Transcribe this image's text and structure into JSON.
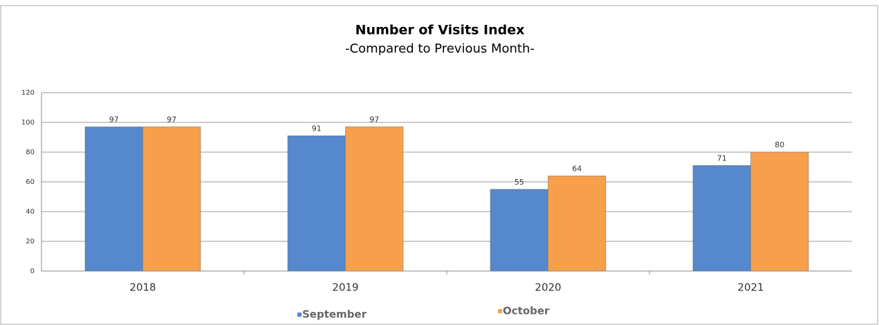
{
  "chart_data": {
    "type": "bar",
    "title": "Number of Visits Index",
    "subtitle": "-Compared to Previous Month-",
    "categories": [
      "2018",
      "2019",
      "2020",
      "2021"
    ],
    "series": [
      {
        "name": "September",
        "color": "#5588cc",
        "values": [
          97,
          91,
          55,
          71
        ]
      },
      {
        "name": "October",
        "color": "#f79f4b",
        "values": [
          97,
          97,
          64,
          80
        ]
      }
    ],
    "ylim": [
      0,
      120
    ],
    "yticks": [
      0,
      20,
      40,
      60,
      80,
      100,
      120
    ],
    "grid": true
  }
}
